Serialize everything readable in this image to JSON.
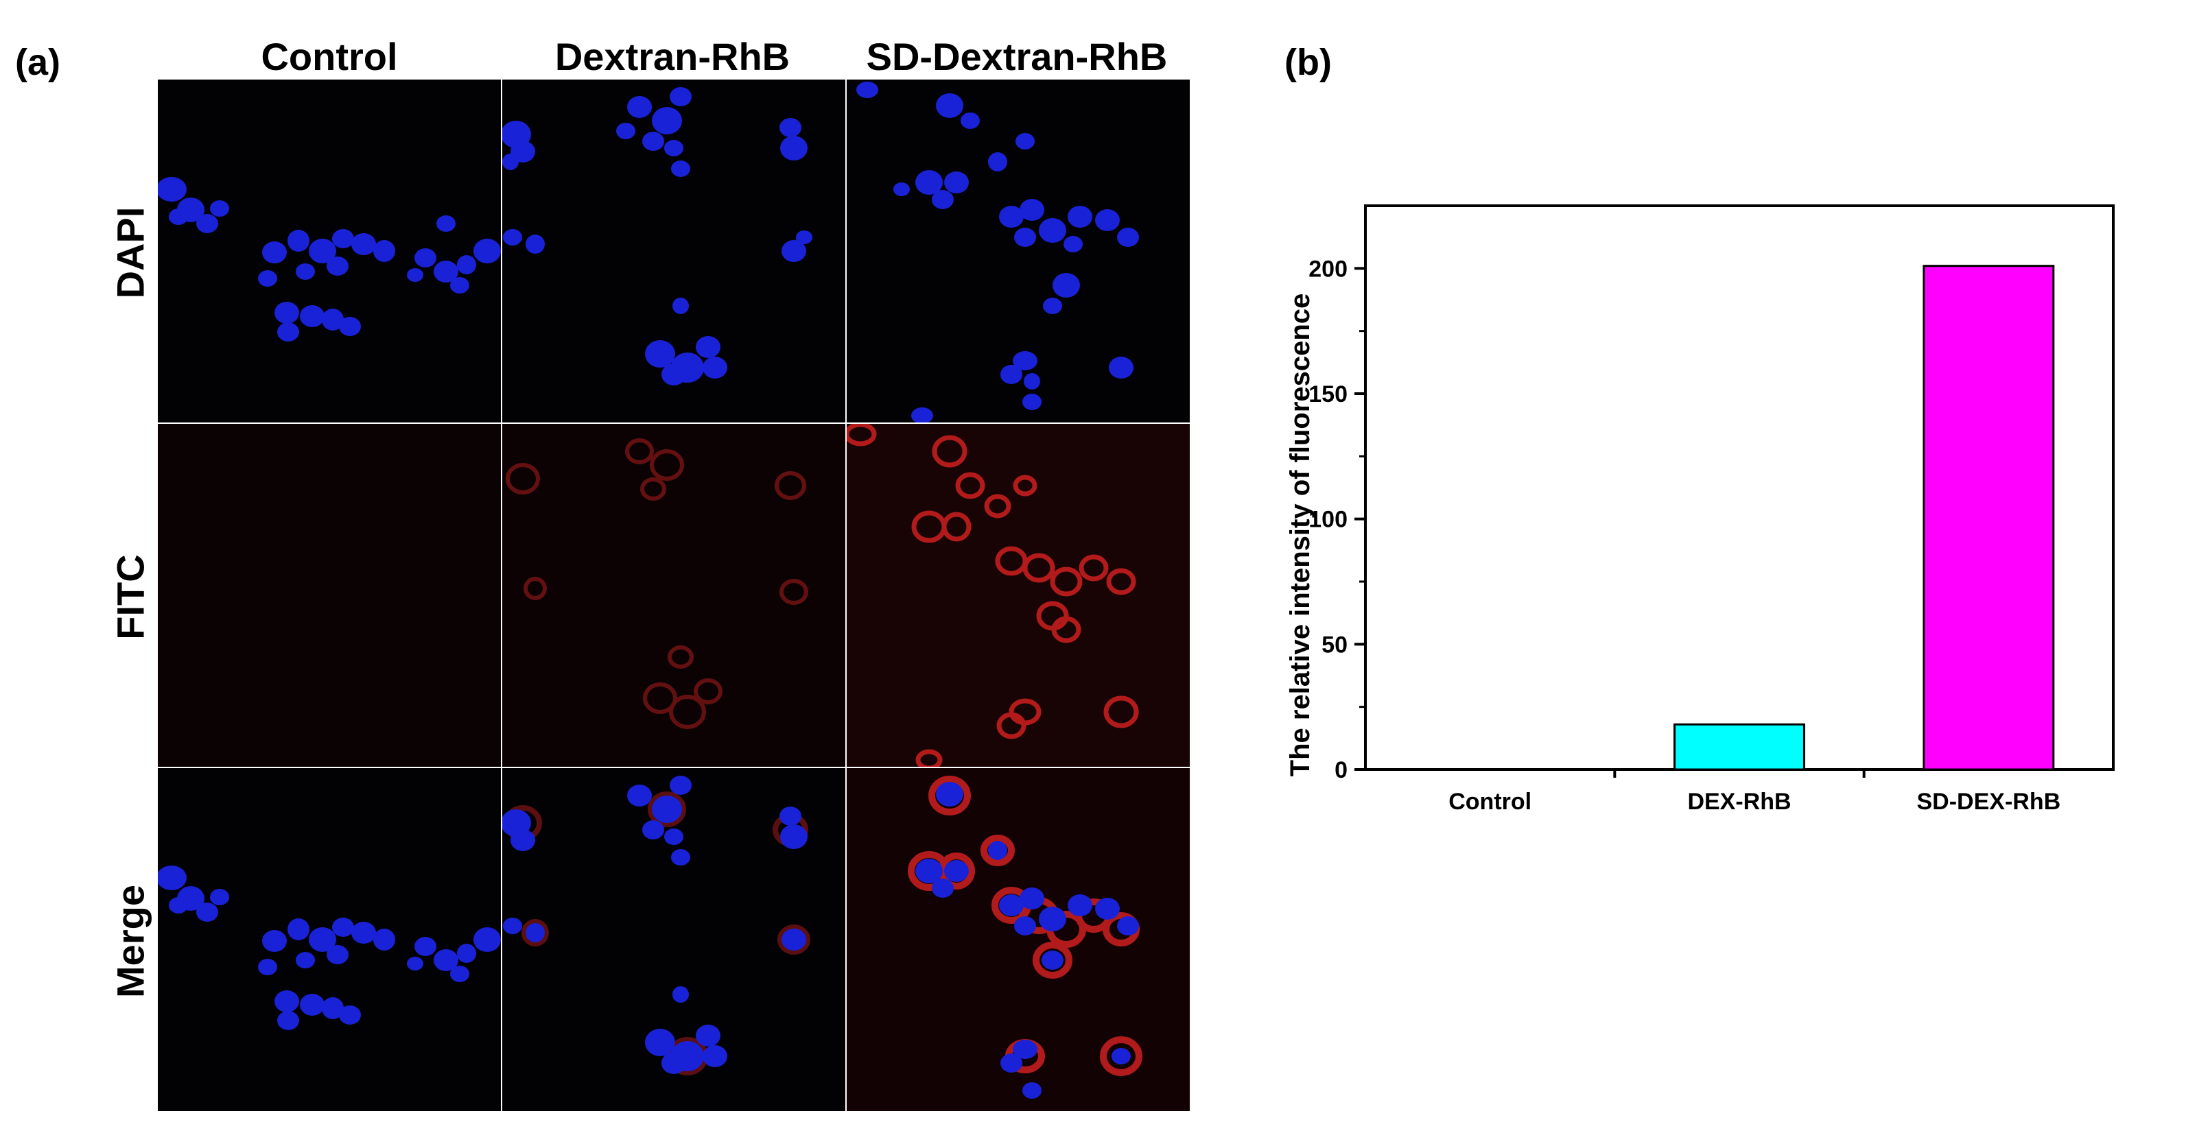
{
  "panel_a": {
    "label": "(a)",
    "columns": [
      "Control",
      "Dextran-RhB",
      "SD-Dextran-RhB"
    ],
    "rows": [
      "DAPI",
      "FITC",
      "Merge"
    ]
  },
  "panel_b": {
    "label": "(b)"
  },
  "chart_data": {
    "type": "bar",
    "categories": [
      "Control",
      "DEX-RhB",
      "SD-DEX-RhB"
    ],
    "values": [
      0,
      18,
      201
    ],
    "colors": [
      "#ffffff",
      "#00ffff",
      "#ff00ff"
    ],
    "xlabel": "",
    "ylabel": "The relative intensity of fluorescence",
    "ylim": [
      0,
      225
    ],
    "yticks": [
      0,
      50,
      100,
      150,
      200
    ],
    "grid": false
  }
}
